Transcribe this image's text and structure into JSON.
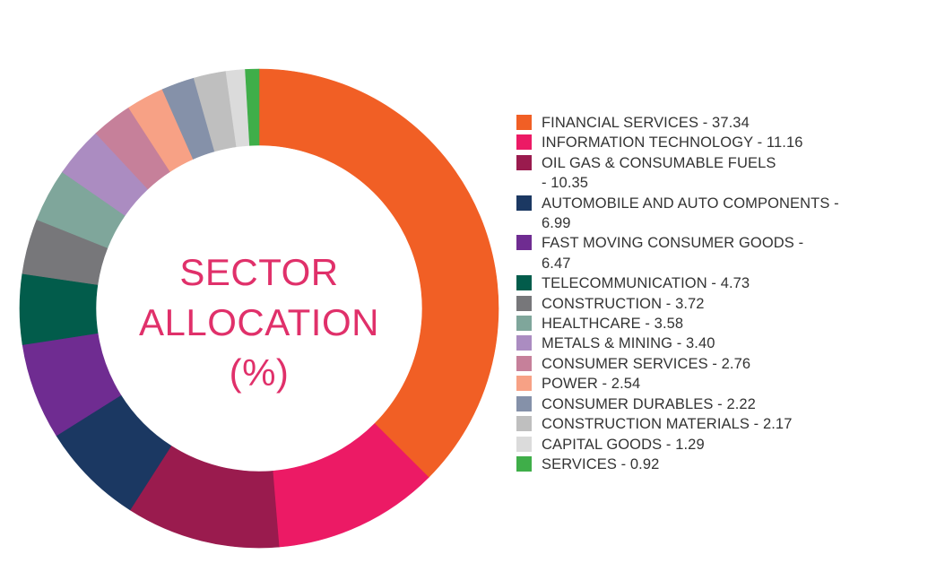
{
  "chart_data": {
    "type": "pie",
    "variant": "donut",
    "title": "SECTOR ALLOCATION (%)",
    "title_lines": [
      "SECTOR",
      "ALLOCATION",
      "(%)"
    ],
    "title_color": "#e0306a",
    "legend_position": "right",
    "slices": [
      {
        "label": "FINANCIAL SERVICES",
        "value": 37.34,
        "value_text": "37.34",
        "color": "#f15f25",
        "legend_lines": [
          "FINANCIAL SERVICES - 37.34"
        ]
      },
      {
        "label": "INFORMATION TECHNOLOGY",
        "value": 11.16,
        "value_text": "11.16",
        "color": "#ec1a65",
        "legend_lines": [
          "INFORMATION TECHNOLOGY - 11.16"
        ]
      },
      {
        "label": "OIL GAS & CONSUMABLE FUELS",
        "value": 10.35,
        "value_text": "10.35",
        "color": "#9a1b4e",
        "legend_lines": [
          "OIL GAS & CONSUMABLE FUELS",
          "- 10.35"
        ]
      },
      {
        "label": "AUTOMOBILE AND AUTO COMPONENTS",
        "value": 6.99,
        "value_text": "6.99",
        "color": "#1b3862",
        "legend_lines": [
          "AUTOMOBILE AND AUTO COMPONENTS -",
          "6.99"
        ]
      },
      {
        "label": "FAST MOVING CONSUMER GOODS",
        "value": 6.47,
        "value_text": "6.47",
        "color": "#6f2c91",
        "legend_lines": [
          "FAST MOVING CONSUMER GOODS -",
          "6.47"
        ]
      },
      {
        "label": "TELECOMMUNICATION",
        "value": 4.73,
        "value_text": "4.73",
        "color": "#025c4b",
        "legend_lines": [
          "TELECOMMUNICATION - 4.73"
        ]
      },
      {
        "label": "CONSTRUCTION",
        "value": 3.72,
        "value_text": "3.72",
        "color": "#77777a",
        "legend_lines": [
          "CONSTRUCTION - 3.72"
        ]
      },
      {
        "label": "HEALTHCARE",
        "value": 3.58,
        "value_text": "3.58",
        "color": "#7fa69b",
        "legend_lines": [
          "HEALTHCARE - 3.58"
        ]
      },
      {
        "label": "METALS & MINING",
        "value": 3.4,
        "value_text": "3.40",
        "color": "#ab8cc1",
        "legend_lines": [
          "METALS & MINING - 3.40"
        ]
      },
      {
        "label": "CONSUMER SERVICES",
        "value": 2.76,
        "value_text": "2.76",
        "color": "#c6809a",
        "legend_lines": [
          "CONSUMER SERVICES - 2.76"
        ]
      },
      {
        "label": "POWER",
        "value": 2.54,
        "value_text": "2.54",
        "color": "#f7a185",
        "legend_lines": [
          "POWER - 2.54"
        ]
      },
      {
        "label": "CONSUMER DURABLES",
        "value": 2.22,
        "value_text": "2.22",
        "color": "#8591a9",
        "legend_lines": [
          "CONSUMER DURABLES - 2.22"
        ]
      },
      {
        "label": "CONSTRUCTION MATERIALS",
        "value": 2.17,
        "value_text": "2.17",
        "color": "#bfbfbf",
        "legend_lines": [
          "CONSTRUCTION MATERIALS - 2.17"
        ]
      },
      {
        "label": "CAPITAL GOODS",
        "value": 1.29,
        "value_text": "1.29",
        "color": "#dbdbdb",
        "legend_lines": [
          "CAPITAL GOODS - 1.29"
        ]
      },
      {
        "label": "SERVICES",
        "value": 0.92,
        "value_text": "0.92",
        "color": "#3fae49",
        "legend_lines": [
          "SERVICES - 0.92"
        ]
      }
    ],
    "start_angle": "12 o'clock",
    "direction": "clockwise"
  }
}
